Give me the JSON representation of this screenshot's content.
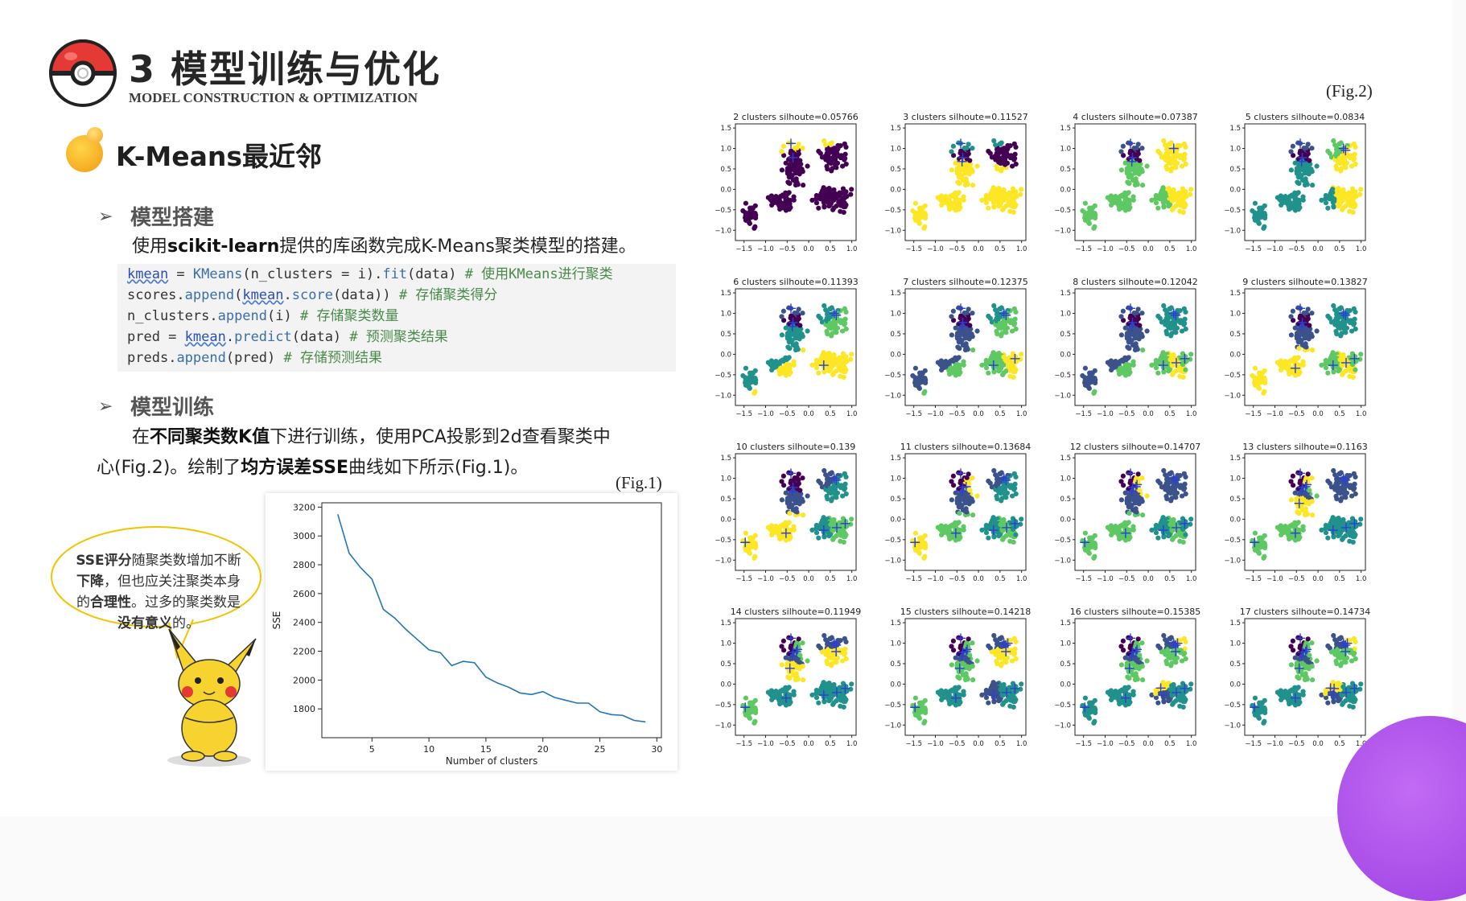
{
  "header": {
    "title": "3 模型训练与优化",
    "subtitle": "MODEL CONSTRUCTION & OPTIMIZATION"
  },
  "section_title": "K-Means最近邻",
  "build": {
    "heading": "模型搭建",
    "text_pre": "使用",
    "text_bold": "scikit-learn",
    "text_post": "提供的库函数完成K-Means聚类模型的搭建。"
  },
  "code": {
    "lines": [
      [
        "kmean",
        " = ",
        "KMeans",
        "(n_clusters = i).",
        "fit",
        "(data) ",
        "# 使用KMeans进行聚类"
      ],
      [
        "scores.",
        "append",
        "(",
        "kmean",
        ".",
        "score",
        "(data)) ",
        "# 存储聚类得分"
      ],
      [
        "n_clusters.",
        "append",
        "(i) ",
        "# 存储聚类数量"
      ],
      [
        "pred = ",
        "kmean",
        ".",
        "predict",
        "(data) ",
        "# 预测聚类结果"
      ],
      [
        "preds",
        ".",
        "append",
        "(pred) ",
        "# 存储预测结果"
      ]
    ]
  },
  "train": {
    "heading": "模型训练",
    "p1_a": "在",
    "p1_b": "不同聚类数K值",
    "p1_c": "下进行训练，使用PCA投影到2d查看聚类中",
    "p2_a": "心(Fig.2)。绘制了",
    "p2_b": "均方误差SSE",
    "p2_c": "曲线如下所示(Fig.1)。"
  },
  "fig1_label": "(Fig.1)",
  "fig2_label": "(Fig.2)",
  "bubble": {
    "b1": "SSE评分",
    "t1": "随聚类数增加不断",
    "b2": "下降",
    "t2": "，但也应关注聚类本身的",
    "b3": "合理性",
    "t3": "。过多的聚类数是",
    "b4": "没有意义",
    "t4": "的。"
  },
  "chart_data": [
    {
      "type": "line",
      "title": "",
      "xlabel": "Number of clusters",
      "ylabel": "SSE",
      "xlim": [
        0.6,
        30.4
      ],
      "ylim": [
        1600,
        3230
      ],
      "xticks": [
        5,
        10,
        15,
        20,
        25,
        30
      ],
      "yticks": [
        1800,
        2000,
        2200,
        2400,
        2600,
        2800,
        3000,
        3200
      ],
      "x": [
        2,
        3,
        4,
        5,
        6,
        7,
        8,
        9,
        10,
        11,
        12,
        13,
        14,
        15,
        16,
        17,
        18,
        19,
        20,
        21,
        22,
        23,
        24,
        25,
        26,
        27,
        28,
        29
      ],
      "values": [
        3150,
        2880,
        2780,
        2700,
        2490,
        2430,
        2350,
        2280,
        2210,
        2190,
        2100,
        2130,
        2120,
        2020,
        1980,
        1950,
        1910,
        1900,
        1920,
        1880,
        1860,
        1840,
        1840,
        1780,
        1760,
        1755,
        1720,
        1710
      ]
    },
    {
      "type": "scatter",
      "panels": [
        {
          "k": 2,
          "title": "2 clusters silhoute=0.05766"
        },
        {
          "k": 3,
          "title": "3 clusters silhoute=0.11527"
        },
        {
          "k": 4,
          "title": "4 clusters silhoute=0.07387"
        },
        {
          "k": 5,
          "title": "5 clusters silhoute=0.0834"
        },
        {
          "k": 6,
          "title": "6 clusters silhoute=0.11393"
        },
        {
          "k": 7,
          "title": "7 clusters silhoute=0.12375"
        },
        {
          "k": 8,
          "title": "8 clusters silhoute=0.12042"
        },
        {
          "k": 9,
          "title": "9 clusters silhoute=0.13827"
        },
        {
          "k": 10,
          "title": "10 clusters silhoute=0.139"
        },
        {
          "k": 11,
          "title": "11 clusters silhoute=0.13684"
        },
        {
          "k": 12,
          "title": "12 clusters silhoute=0.14707"
        },
        {
          "k": 13,
          "title": "13 clusters silhoute=0.1163"
        },
        {
          "k": 14,
          "title": "14 clusters silhoute=0.11949"
        },
        {
          "k": 15,
          "title": "15 clusters silhoute=0.14218"
        },
        {
          "k": 16,
          "title": "16 clusters silhoute=0.15385"
        },
        {
          "k": 17,
          "title": "17 clusters silhoute=0.14734"
        }
      ],
      "xticks": [
        "−1.5",
        "−1.0",
        "−0.5",
        "0.0",
        "0.5",
        "1.0"
      ],
      "yticks": [
        "1.5",
        "1.0",
        "0.5",
        "0.0",
        "−0.5",
        "−1.0"
      ],
      "xlim": [
        -1.7,
        1.1
      ],
      "ylim": [
        -1.25,
        1.6
      ],
      "colormap": [
        "#440154",
        "#3b528b",
        "#21918c",
        "#5ec962",
        "#fde725"
      ]
    }
  ]
}
